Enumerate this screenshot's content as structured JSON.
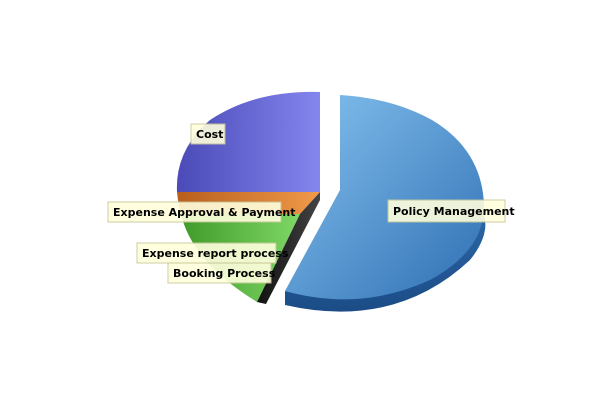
{
  "chart_data": {
    "type": "pie",
    "title": "",
    "style": "3d-exploded",
    "slices": [
      {
        "label": "Policy Management",
        "value": 60,
        "color": "#5b9bd5",
        "exploded": true
      },
      {
        "label": "Booking Process",
        "value": 3,
        "color": "#2a2a2a",
        "exploded": false
      },
      {
        "label": "Expense report process",
        "value": 8,
        "color": "#5cbf3f",
        "exploded": false
      },
      {
        "label": "Expense Approval & Payment",
        "value": 4,
        "color": "#e07a2e",
        "exploded": false
      },
      {
        "label": "Cost",
        "value": 25,
        "color": "#6a6ad6",
        "exploded": false
      }
    ]
  }
}
